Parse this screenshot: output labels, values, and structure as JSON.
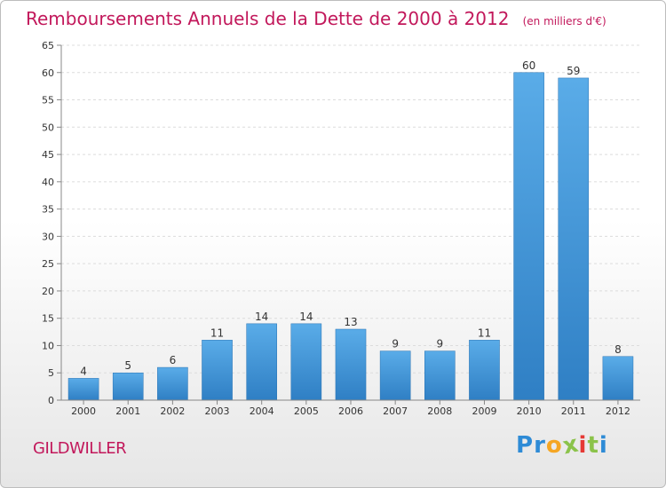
{
  "header": {
    "title": "Remboursements Annuels de la Dette de 2000 à 2012",
    "unit_note": "(en milliers d'€)"
  },
  "commune": "GILDWILLER",
  "logo": {
    "letters": [
      {
        "ch": "P",
        "color": "#2e8bd6"
      },
      {
        "ch": "r",
        "color": "#2e8bd6"
      },
      {
        "ch": "o",
        "color": "#f5a623"
      },
      {
        "ch": "x",
        "color": "#8bc34a"
      },
      {
        "ch": "i",
        "color": "#e53935"
      },
      {
        "ch": "t",
        "color": "#8bc34a"
      },
      {
        "ch": "i",
        "color": "#2e8bd6"
      }
    ]
  },
  "colors": {
    "bar_top": "#5aace8",
    "bar_bottom": "#2f7fc4",
    "title": "#c2185b"
  },
  "chart_data": {
    "type": "bar",
    "categories": [
      "2000",
      "2001",
      "2002",
      "2003",
      "2004",
      "2005",
      "2006",
      "2007",
      "2008",
      "2009",
      "2010",
      "2011",
      "2012"
    ],
    "values": [
      4,
      5,
      6,
      11,
      14,
      14,
      13,
      9,
      9,
      11,
      60,
      59,
      8
    ],
    "title": "Remboursements Annuels de la Dette de 2000 à 2012",
    "ylim": [
      0,
      65
    ],
    "yticks": [
      0,
      5,
      10,
      15,
      20,
      25,
      30,
      35,
      40,
      45,
      50,
      55,
      60,
      65
    ],
    "grid": true
  }
}
